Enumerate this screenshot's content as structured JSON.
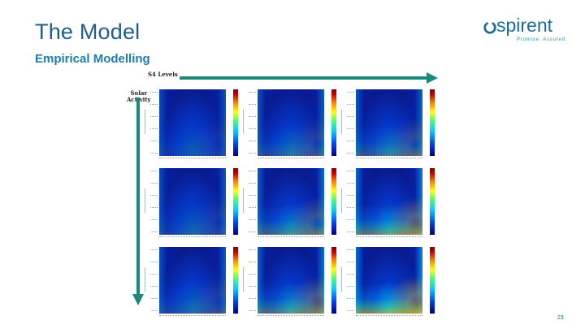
{
  "slide": {
    "title": "The Model",
    "subtitle": "Empirical Modelling",
    "page_number": "23"
  },
  "logo": {
    "word": "spirent",
    "tagline": "Promise. Assured.",
    "color": "#1a6d98"
  },
  "figure": {
    "top_axis_label": "S4 Levels",
    "side_axis_label_line1": "Solar",
    "side_axis_label_line2": "Activity",
    "arrow_color": "#1a8a7a",
    "panels": [
      {
        "row": 1,
        "col": 1,
        "intensity": 0.1
      },
      {
        "row": 1,
        "col": 2,
        "intensity": 0.25
      },
      {
        "row": 1,
        "col": 3,
        "intensity": 0.35
      },
      {
        "row": 2,
        "col": 1,
        "intensity": 0.15
      },
      {
        "row": 2,
        "col": 2,
        "intensity": 0.45
      },
      {
        "row": 2,
        "col": 3,
        "intensity": 0.65
      },
      {
        "row": 3,
        "col": 1,
        "intensity": 0.2
      },
      {
        "row": 3,
        "col": 2,
        "intensity": 0.55
      },
      {
        "row": 3,
        "col": 3,
        "intensity": 0.85
      }
    ]
  }
}
